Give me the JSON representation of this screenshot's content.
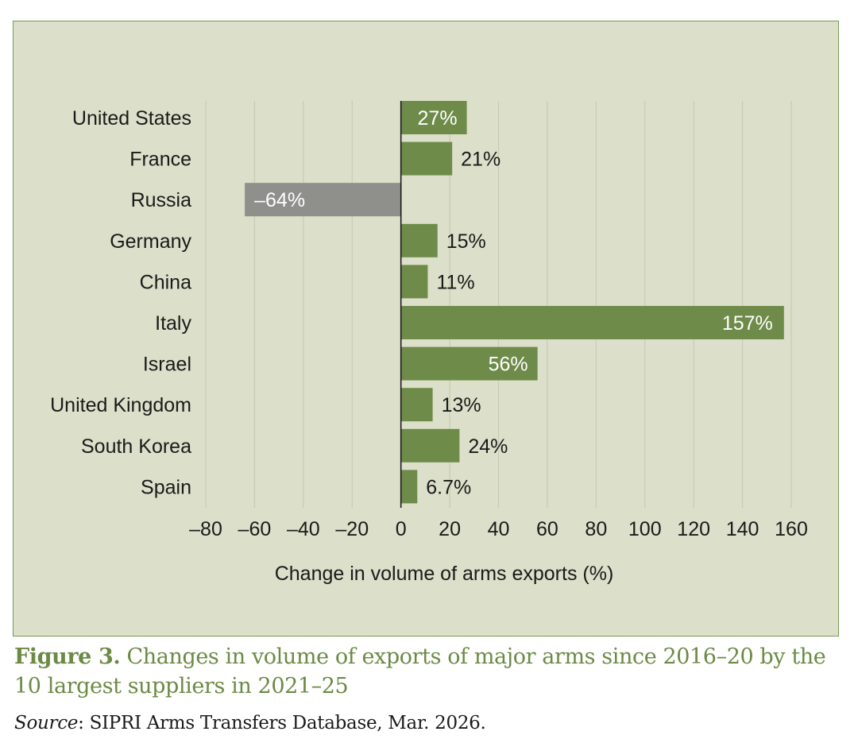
{
  "chart_data": {
    "type": "bar",
    "orientation": "horizontal",
    "categories": [
      "United States",
      "France",
      "Russia",
      "Germany",
      "China",
      "Italy",
      "Israel",
      "United Kingdom",
      "South Korea",
      "Spain"
    ],
    "values": [
      27,
      21,
      -64,
      15,
      11,
      157,
      56,
      13,
      24,
      6.7
    ],
    "data_labels": [
      "27%",
      "21%",
      "–64%",
      "15%",
      "11%",
      "157%",
      "56%",
      "13%",
      "24%",
      "6.7%"
    ],
    "label_inside": [
      true,
      false,
      true,
      false,
      false,
      true,
      true,
      false,
      false,
      false
    ],
    "bar_colors": [
      "#6e8b4a",
      "#6e8b4a",
      "#8f8f8b",
      "#6e8b4a",
      "#6e8b4a",
      "#6e8b4a",
      "#6e8b4a",
      "#6e8b4a",
      "#6e8b4a",
      "#6e8b4a"
    ],
    "title": "",
    "xlabel": "Change in volume of arms exports (%)",
    "ylabel": "",
    "xlim": [
      -80,
      160
    ],
    "xticks": [
      -80,
      -60,
      -40,
      -20,
      0,
      20,
      40,
      60,
      80,
      100,
      120,
      140,
      160
    ],
    "xtick_labels": [
      "–80",
      "–60",
      "–40",
      "–20",
      "0",
      "20",
      "40",
      "60",
      "80",
      "100",
      "120",
      "140",
      "160"
    ],
    "grid": "vertical",
    "legend": "none"
  },
  "colors": {
    "background": "#dcdfc9",
    "border": "#7a9a52",
    "bar_positive": "#6e8b4a",
    "bar_negative": "#8f8f8b",
    "gridline": "#c9ccb4",
    "caption": "#6b8a44"
  },
  "caption": {
    "figure_label": "Figure 3.",
    "text": " Changes in volume of exports of major arms since 2016–20 by the 10 largest suppliers in 2021–25"
  },
  "source": {
    "label": "Source",
    "text": ": SIPRI Arms Transfers Database, Mar. 2026."
  }
}
